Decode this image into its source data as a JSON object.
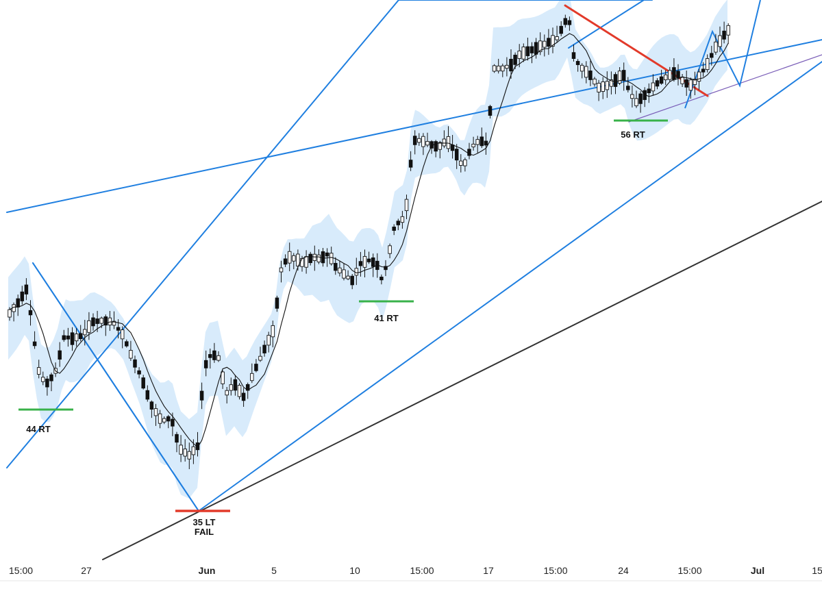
{
  "colors": {
    "band_fill": "#d8ebfb",
    "trend_blue": "#1f7fe0",
    "trend_red": "#e23a2a",
    "trend_dark": "#333333",
    "trend_purple": "#7b5fb8",
    "support_green": "#38b24a",
    "candle_up_fill": "#ffffff",
    "candle_down_fill": "#111111",
    "candle_stroke": "#111111",
    "ma_line": "#111111"
  },
  "x_axis": {
    "ticks": [
      {
        "label": "15:00",
        "bold": false
      },
      {
        "label": "27",
        "bold": false
      },
      {
        "label": "Jun",
        "bold": true
      },
      {
        "label": "5",
        "bold": false
      },
      {
        "label": "10",
        "bold": false
      },
      {
        "label": "15:00",
        "bold": false
      },
      {
        "label": "17",
        "bold": false
      },
      {
        "label": "15:00",
        "bold": false
      },
      {
        "label": "24",
        "bold": false
      },
      {
        "label": "15:00",
        "bold": false
      },
      {
        "label": "Jul",
        "bold": true
      },
      {
        "label": "15",
        "bold": false
      }
    ]
  },
  "chart_data": {
    "type": "candlestick",
    "title": "",
    "xlabel": "",
    "ylabel": "",
    "grid": false,
    "legend": "none",
    "y_scale_printed": false,
    "series": [
      {
        "name": "",
        "kind": "candles"
      },
      {
        "name": "",
        "kind": "moving-average"
      },
      {
        "name": "",
        "kind": "volatility-band"
      }
    ],
    "annotations": [
      {
        "label": "44 RT",
        "kind": "support-line"
      },
      {
        "label": "41 RT",
        "kind": "support-line"
      },
      {
        "label": "56 RT",
        "kind": "support-line"
      },
      {
        "label": "35 LT",
        "sublabel": "FAIL",
        "kind": "failed-low"
      }
    ]
  }
}
